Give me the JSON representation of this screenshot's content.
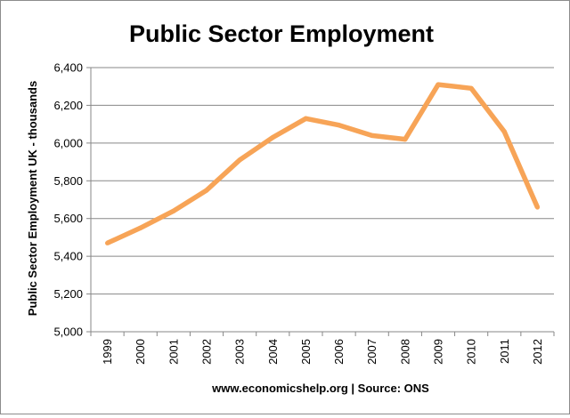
{
  "chart_data": {
    "type": "line",
    "title": "Public Sector Employment",
    "xlabel": "www.economicshelp.org | Source: ONS",
    "ylabel": "Public Sector Employment UK - thousands",
    "x": [
      "1999",
      "2000",
      "2001",
      "2002",
      "2003",
      "2004",
      "2005",
      "2006",
      "2007",
      "2008",
      "2009",
      "2010",
      "2011",
      "2012"
    ],
    "series": [
      {
        "values": [
          5470,
          5550,
          5640,
          5750,
          5910,
          6030,
          6130,
          6095,
          6040,
          6020,
          6310,
          6290,
          6060,
          5660
        ]
      }
    ],
    "yticks": [
      "5,000",
      "5,200",
      "5,400",
      "5,600",
      "5,800",
      "6,000",
      "6,200",
      "6,400"
    ],
    "ylim": [
      5000,
      6400
    ],
    "grid": "horizontal",
    "legend": "none",
    "line_color": "#F7A457",
    "grid_color": "#878787"
  }
}
